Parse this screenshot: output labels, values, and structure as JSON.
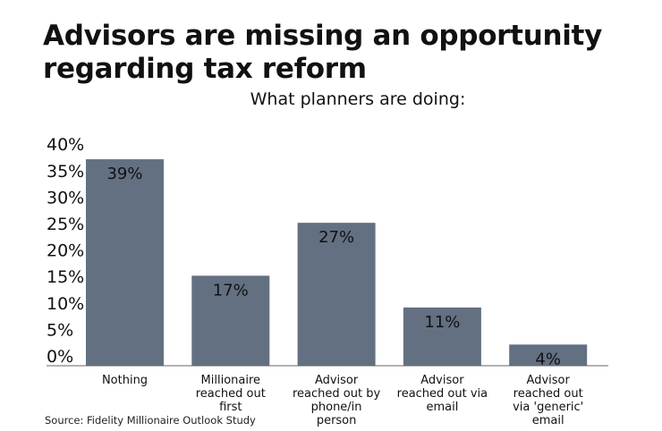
{
  "chart_data": {
    "type": "bar",
    "title": "Advisors are missing an opportunity regarding tax reform",
    "subtitle": "What planners are doing:",
    "categories": [
      "Nothing",
      "Millionaire reached out first",
      "Advisor reached out by phone/in person",
      "Advisor reached out via email",
      "Advisor reached out via 'generic' email"
    ],
    "category_lines": [
      [
        "Nothing"
      ],
      [
        "Millionaire",
        "reached out",
        "first"
      ],
      [
        "Advisor",
        "reached out by",
        "phone/in",
        "person"
      ],
      [
        "Advisor",
        "reached out via",
        "email"
      ],
      [
        "Advisor",
        "reached out",
        "via 'generic'",
        "email"
      ]
    ],
    "values": [
      39,
      17,
      27,
      11,
      4
    ],
    "data_labels": [
      "39%",
      "17%",
      "27%",
      "11%",
      "4%"
    ],
    "yticks": [
      "0%",
      "5%",
      "10%",
      "15%",
      "20%",
      "25%",
      "30%",
      "35%",
      "40%"
    ],
    "ylim": [
      0,
      40
    ],
    "grid": false,
    "bar_color": "#637082",
    "source": "Source: Fidelity Millionaire Outlook Study"
  }
}
